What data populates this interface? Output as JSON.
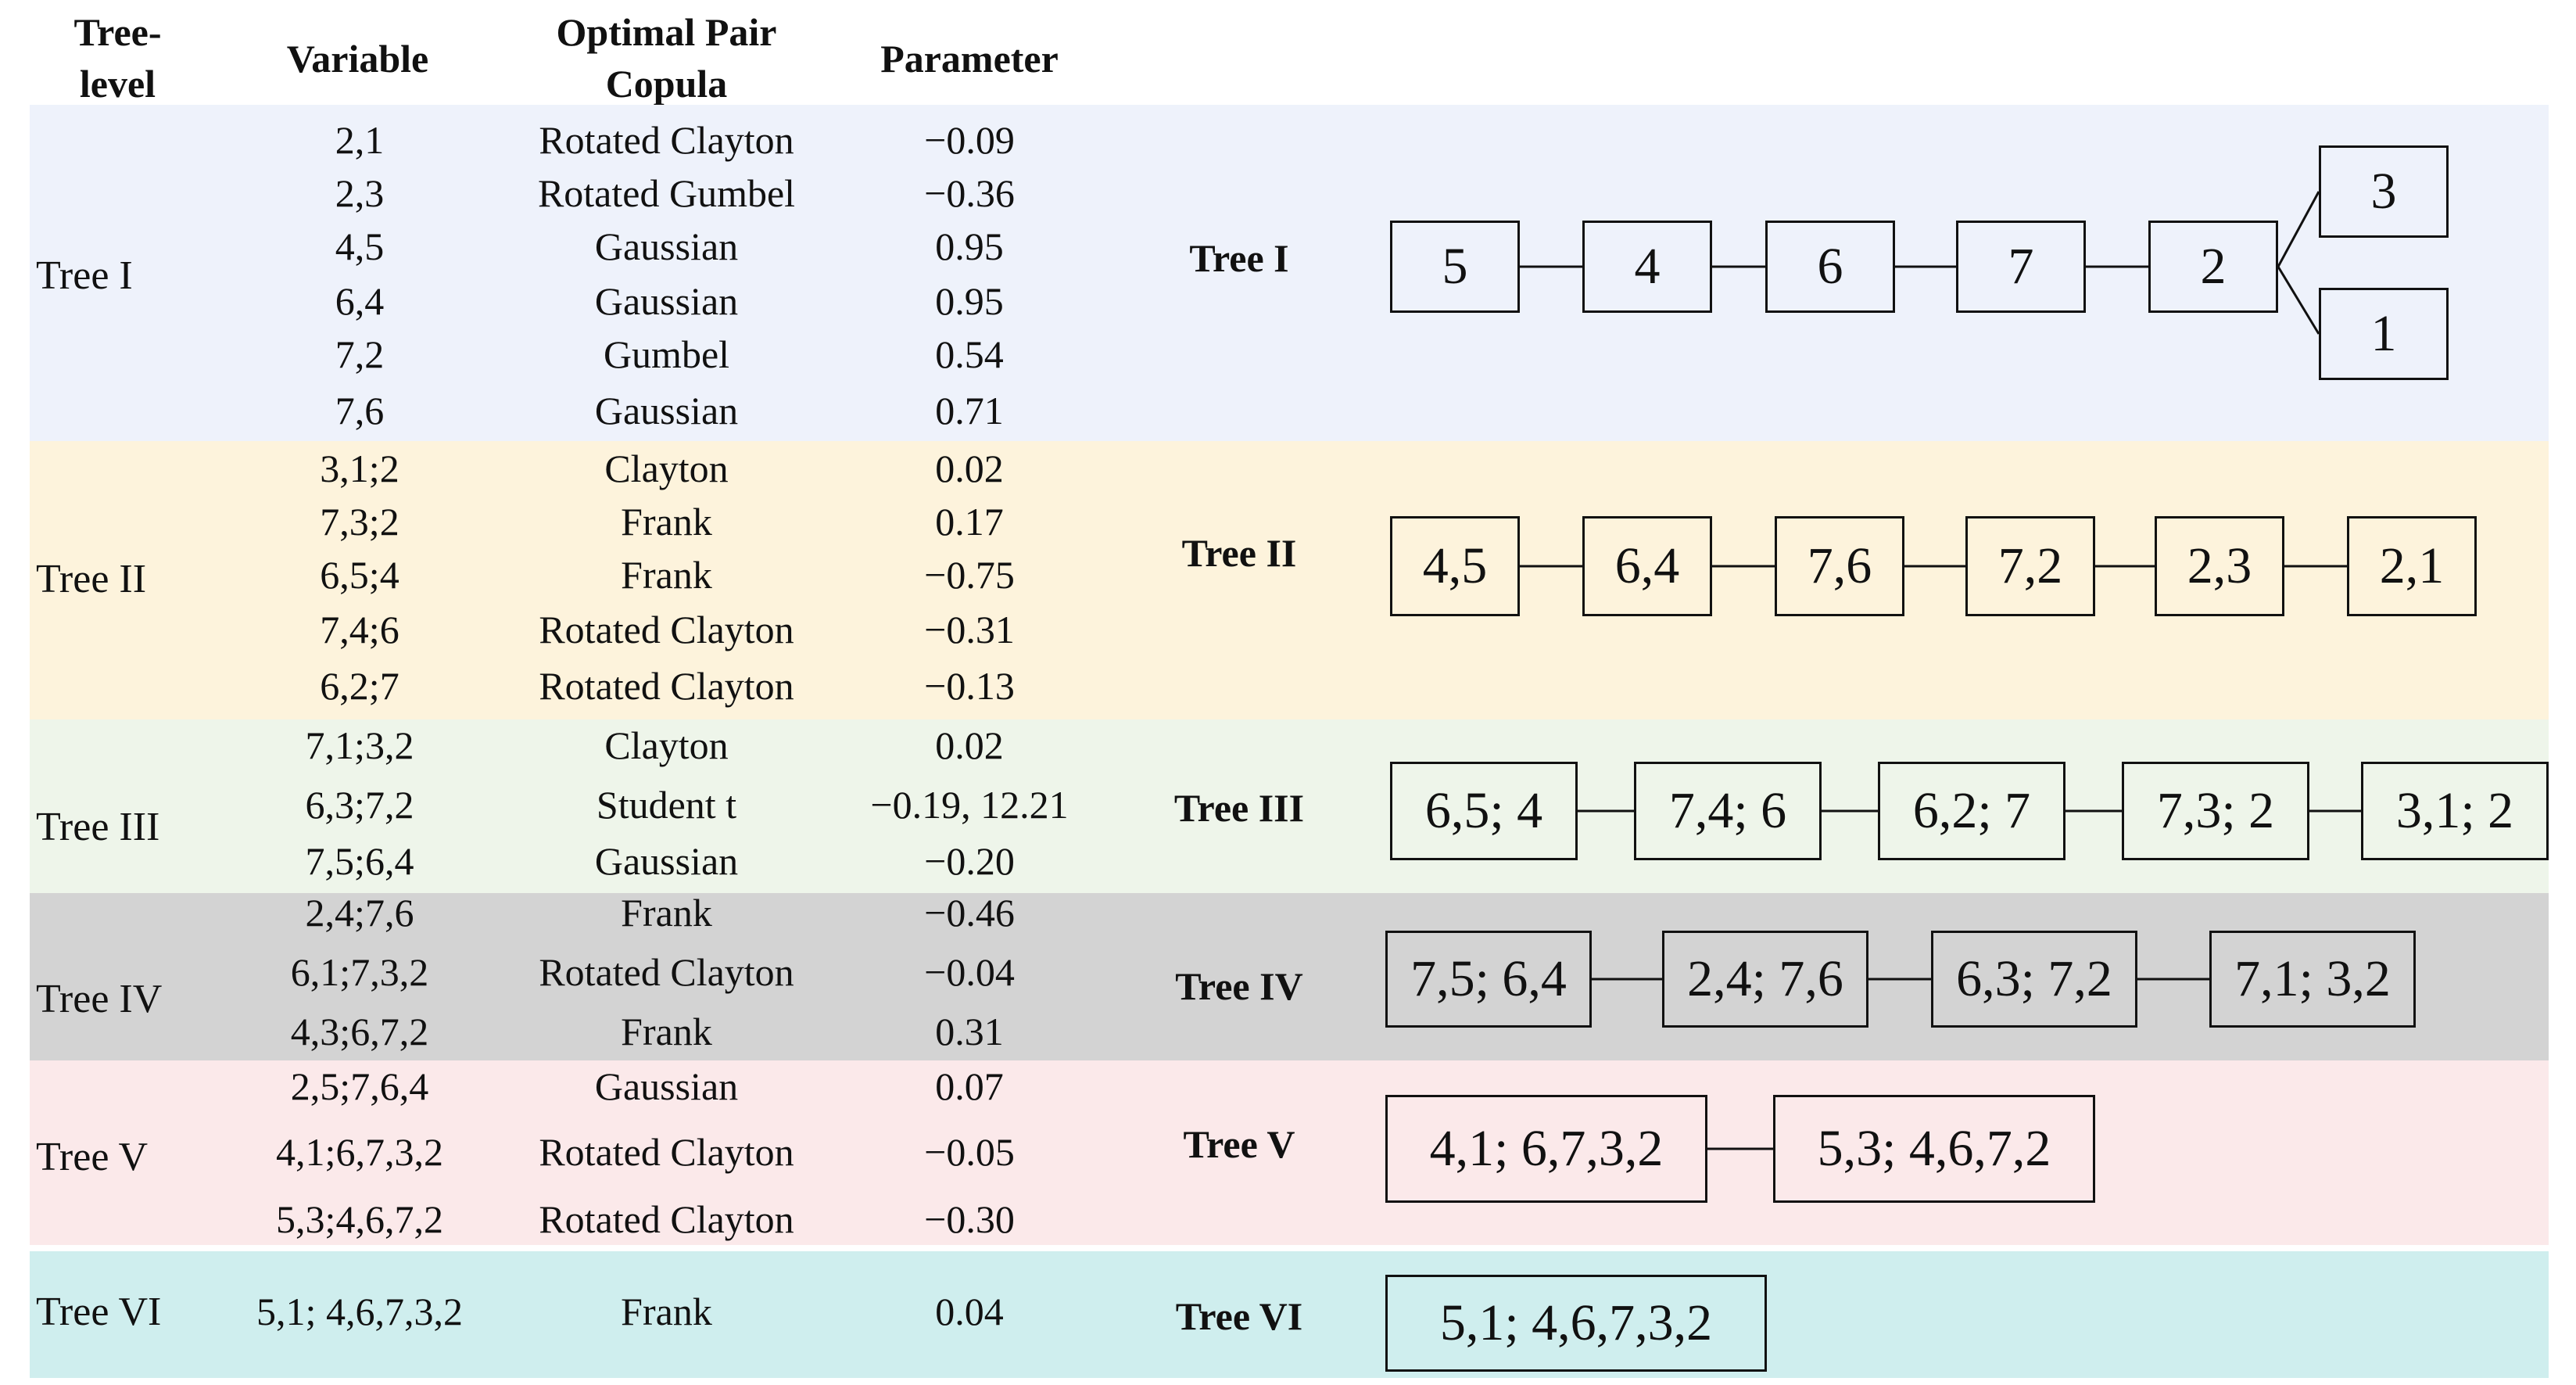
{
  "headers": {
    "tree_level": "Tree-\nlevel",
    "variable": "Variable",
    "copula": "Optimal Pair\nCopula",
    "parameter": "Parameter"
  },
  "bands": [
    {
      "label": "Tree I",
      "diagram_title": "Tree I",
      "color": "#eef2fb",
      "rows": [
        {
          "variable": "2,1",
          "copula": "Rotated Clayton",
          "parameter": "−0.09"
        },
        {
          "variable": "2,3",
          "copula": "Rotated Gumbel",
          "parameter": "−0.36"
        },
        {
          "variable": "4,5",
          "copula": "Gaussian",
          "parameter": "0.95"
        },
        {
          "variable": "6,4",
          "copula": "Gaussian",
          "parameter": "0.95"
        },
        {
          "variable": "7,2",
          "copula": "Gumbel",
          "parameter": "0.54"
        },
        {
          "variable": "7,6",
          "copula": "Gaussian",
          "parameter": "0.71"
        }
      ],
      "nodes": [
        "5",
        "4",
        "6",
        "7",
        "2",
        "3",
        "1"
      ]
    },
    {
      "label": "Tree II",
      "diagram_title": "Tree II",
      "color": "#fdf3dc",
      "rows": [
        {
          "variable": "3,1;2",
          "copula": "Clayton",
          "parameter": "0.02"
        },
        {
          "variable": "7,3;2",
          "copula": "Frank",
          "parameter": "0.17"
        },
        {
          "variable": "6,5;4",
          "copula": "Frank",
          "parameter": "−0.75"
        },
        {
          "variable": "7,4;6",
          "copula": "Rotated Clayton",
          "parameter": "−0.31"
        },
        {
          "variable": "6,2;7",
          "copula": "Rotated Clayton",
          "parameter": "−0.13"
        }
      ],
      "nodes": [
        "4,5",
        "6,4",
        "7,6",
        "7,2",
        "2,3",
        "2,1"
      ]
    },
    {
      "label": "Tree III",
      "diagram_title": "Tree III",
      "color": "#eef5ea",
      "rows": [
        {
          "variable": "7,1;3,2",
          "copula": "Clayton",
          "parameter": "0.02"
        },
        {
          "variable": "6,3;7,2",
          "copula": "Student t",
          "parameter": "−0.19, 12.21"
        },
        {
          "variable": "7,5;6,4",
          "copula": "Gaussian",
          "parameter": "−0.20"
        }
      ],
      "nodes": [
        "6,5; 4",
        "7,4; 6",
        "6,2; 7",
        "7,3; 2",
        "3,1; 2"
      ]
    },
    {
      "label": "Tree IV",
      "diagram_title": "Tree IV",
      "color": "#d3d3d3",
      "rows": [
        {
          "variable": "2,4;7,6",
          "copula": "Frank",
          "parameter": "−0.46"
        },
        {
          "variable": "6,1;7,3,2",
          "copula": "Rotated Clayton",
          "parameter": "−0.04"
        },
        {
          "variable": "4,3;6,7,2",
          "copula": "Frank",
          "parameter": "0.31"
        }
      ],
      "nodes": [
        "7,5; 6,4",
        "2,4; 7,6",
        "6,3; 7,2",
        "7,1; 3,2"
      ]
    },
    {
      "label": "Tree V",
      "diagram_title": "Tree V",
      "color": "#fbe9ea",
      "rows": [
        {
          "variable": "2,5;7,6,4",
          "copula": "Gaussian",
          "parameter": "0.07"
        },
        {
          "variable": "4,1;6,7,3,2",
          "copula": "Rotated Clayton",
          "parameter": "−0.05"
        },
        {
          "variable": "5,3;4,6,7,2",
          "copula": "Rotated Clayton",
          "parameter": "−0.30"
        }
      ],
      "nodes": [
        "4,1; 6,7,3,2",
        "5,3; 4,6,7,2"
      ]
    },
    {
      "label": "Tree VI",
      "diagram_title": "Tree VI",
      "color": "#cfeeee",
      "rows": [
        {
          "variable": "5,1; 4,6,7,3,2",
          "copula": "Frank",
          "parameter": "0.04"
        }
      ],
      "nodes": [
        "5,1; 4,6,7,3,2"
      ]
    }
  ]
}
